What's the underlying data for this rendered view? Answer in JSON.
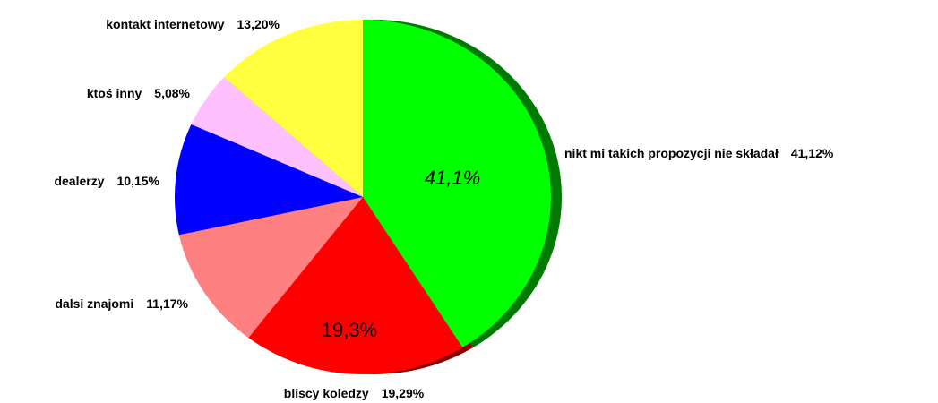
{
  "chart_data": {
    "type": "pie",
    "categories": [
      "nikt mi takich propozycji nie składał",
      "bliscy koledzy",
      "dalsi znajomi",
      "dealerzy",
      "ktoś inny",
      "kontakt internetowy"
    ],
    "values": [
      41.12,
      19.29,
      11.17,
      10.15,
      5.08,
      13.2
    ],
    "value_labels": [
      "41,12%",
      "19,29%",
      "11,17%",
      "10,15%",
      "5,08%",
      "13,20%"
    ],
    "inner_labels": [
      "41,1%",
      "19,3%",
      null,
      null,
      null,
      null
    ],
    "colors": [
      "#00ff00",
      "#ff0000",
      "#ff8080",
      "#0000ff",
      "#ffc0ff",
      "#ffff40"
    ],
    "shadow_colors": [
      "#007a00",
      "#8a0000",
      "#8a4545",
      "#00008a",
      "#9a6a9a",
      "#b8962a"
    ]
  }
}
